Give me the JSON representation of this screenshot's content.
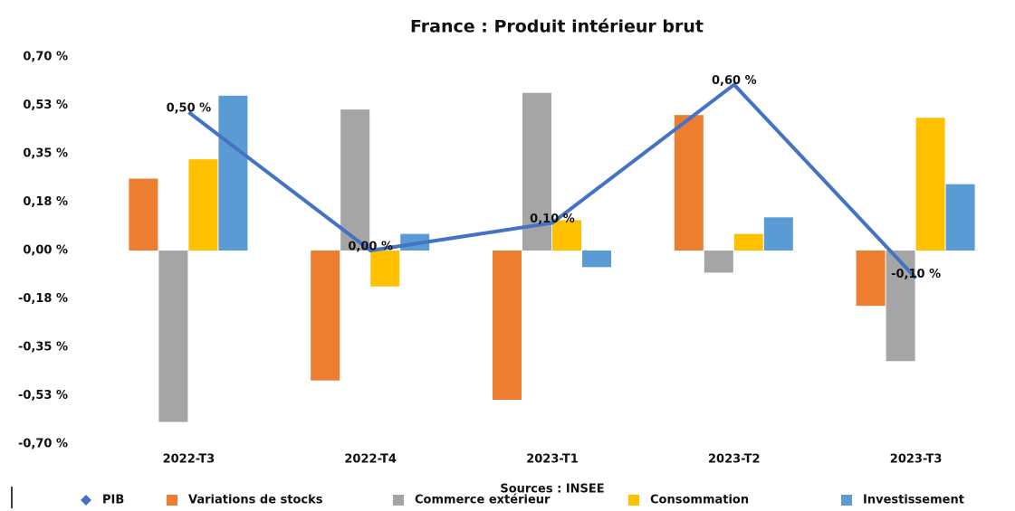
{
  "chart_data": {
    "type": "bar",
    "title": "France : Produit intérieur brut",
    "source": "Sources : INSEE",
    "categories": [
      "2022-T3",
      "2022-T4",
      "2023-T1",
      "2023-T2",
      "2023-T3"
    ],
    "series": [
      {
        "name": "PIB",
        "type": "line",
        "color": "#4472c4",
        "values": [
          0.5,
          0,
          0.1,
          0.6,
          -0.1
        ],
        "value_labels": [
          "0,50 %",
          "0,00 %",
          "0,10 %",
          "0,60 %",
          "-0,10 %"
        ]
      },
      {
        "name": "Variations de stocks",
        "color": "#ed7d31",
        "values": [
          0.26,
          -0.47,
          -0.54,
          0.49,
          -0.2
        ]
      },
      {
        "name": "Commerce extérieur",
        "color": "#a5a5a5",
        "values": [
          -0.62,
          0.51,
          0.57,
          -0.08,
          -0.4
        ]
      },
      {
        "name": "Consommation",
        "color": "#ffc000",
        "values": [
          0.33,
          -0.13,
          0.11,
          0.06,
          0.48
        ]
      },
      {
        "name": "Investissement",
        "color": "#5b9bd5",
        "values": [
          0.56,
          0.06,
          -0.06,
          0.12,
          0.24
        ]
      }
    ],
    "ylim": [
      -0.7,
      0.7
    ],
    "yticks": [
      {
        "value": -0.7,
        "label": "-0,70 %"
      },
      {
        "value": -0.525,
        "label": "-0,53 %"
      },
      {
        "value": -0.35,
        "label": "-0,35 %"
      },
      {
        "value": -0.175,
        "label": "-0,18 %"
      },
      {
        "value": 0,
        "label": "0,00 %"
      },
      {
        "value": 0.175,
        "label": "0,18 %"
      },
      {
        "value": 0.35,
        "label": "0,35 %"
      },
      {
        "value": 0.525,
        "label": "0,53 %"
      },
      {
        "value": 0.7,
        "label": "0,70 %"
      }
    ],
    "grid": false,
    "legend": "bottom"
  }
}
